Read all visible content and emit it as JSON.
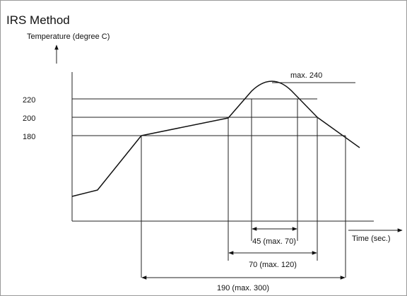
{
  "title": "IRS Method",
  "axis": {
    "y_label": "Temperature (degree C)",
    "x_label": "Time (sec.)"
  },
  "temperature_levels": {
    "t220": "220",
    "t200": "200",
    "t180": "180",
    "peak_label": "max. 240"
  },
  "durations": {
    "above_220": "45 (max. 70)",
    "above_200": "70 (max. 120)",
    "above_180": "190 (max. 300)"
  }
}
